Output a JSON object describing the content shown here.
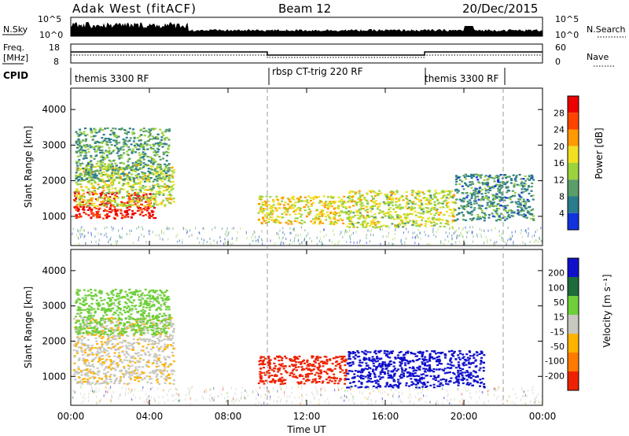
{
  "header": {
    "station": "Adak West (fitACF)",
    "beam": "Beam 12",
    "date": "20/Dec/2015"
  },
  "nsky_panel": {
    "left_label": "N.Sky",
    "right_label": "N.Search",
    "left_ticks": [
      "10^5",
      "10^0"
    ],
    "right_ticks": [
      "10^5",
      "10^0"
    ]
  },
  "freq_panel": {
    "left_label_line1": "Freq.",
    "left_label_line2": "[MHz]",
    "right_label": "Nave",
    "left_ticks": [
      "18",
      "8"
    ],
    "right_ticks": [
      "60",
      "0"
    ]
  },
  "cpid": {
    "label": "CPID",
    "segments": [
      {
        "label": "themis 3300 RF",
        "start_hour": 0,
        "end_hour": 10
      },
      {
        "label": "rbsp CT-trig 220 RF",
        "start_hour": 10,
        "end_hour": 18
      },
      {
        "label": "themis 3300 RF",
        "start_hour": 18,
        "end_hour": 22
      }
    ]
  },
  "power_panel": {
    "ylabel": "Slant Range [km]",
    "yticks": [
      "1000",
      "2000",
      "3000",
      "4000"
    ],
    "colorbar_label": "Power [dB]",
    "colorbar_ticks": [
      "4",
      "8",
      "12",
      "16",
      "20",
      "24",
      "28"
    ]
  },
  "velocity_panel": {
    "ylabel": "Slant Range [km]",
    "yticks": [
      "1000",
      "2000",
      "3000",
      "4000"
    ],
    "colorbar_label": "Velocity [m s⁻¹]",
    "colorbar_ticks": [
      "200",
      "100",
      "50",
      "15",
      "-15",
      "-50",
      "-100",
      "-200"
    ]
  },
  "xaxis": {
    "label": "Time UT",
    "ticks": [
      "00:00",
      "04:00",
      "08:00",
      "12:00",
      "16:00",
      "20:00",
      "00:00"
    ]
  },
  "chart_data": {
    "type": "heatmap",
    "title": "Adak West (fitACF)",
    "subtitle": "Beam 12 20/Dec/2015",
    "xlabel": "Time UT",
    "ylabel": "Slant Range [km]",
    "xlim_hours": [
      0,
      24
    ],
    "ylim_km": [
      180,
      4600
    ],
    "grid": false,
    "dashed_markers_hours": [
      10,
      22
    ],
    "colors": {
      "power": [
        "#1133dd",
        "#2a7b8c",
        "#5a9e6b",
        "#9ad33c",
        "#f0e020",
        "#ff9a00",
        "#ff4400",
        "#ee0000"
      ],
      "velocity": [
        "#1010cc",
        "#1e6b3c",
        "#6fcf3a",
        "#c8c8c0",
        "#ffb300",
        "#ff7a00",
        "#ee2200"
      ]
    },
    "series": [
      {
        "name": "Power [dB]",
        "region": [
          {
            "t_start": 0.1,
            "t_end": 4.3,
            "r_low": 950,
            "r_high": 1700,
            "value": 28
          },
          {
            "t_start": 0.2,
            "t_end": 5.2,
            "r_low": 1300,
            "r_high": 2500,
            "value": 14
          },
          {
            "t_start": 0.2,
            "t_end": 5.0,
            "r_low": 2000,
            "r_high": 3500,
            "value": 8
          },
          {
            "t_start": 9.5,
            "t_end": 14.0,
            "r_low": 800,
            "r_high": 1600,
            "value": 16
          },
          {
            "t_start": 14.0,
            "t_end": 19.5,
            "r_low": 700,
            "r_high": 1750,
            "value": 14
          },
          {
            "t_start": 19.5,
            "t_end": 23.5,
            "r_low": 900,
            "r_high": 2200,
            "value": 6
          }
        ]
      },
      {
        "name": "Velocity [m s⁻¹]",
        "region": [
          {
            "t_start": 0.1,
            "t_end": 5.2,
            "r_low": 800,
            "r_high": 2700,
            "value": 0
          },
          {
            "t_start": 0.2,
            "t_end": 5.0,
            "r_low": 2200,
            "r_high": 3500,
            "value": 50
          },
          {
            "t_start": 9.5,
            "t_end": 14.0,
            "r_low": 800,
            "r_high": 1600,
            "value": -200
          },
          {
            "t_start": 14.0,
            "t_end": 21.0,
            "r_low": 700,
            "r_high": 1750,
            "value": 200
          }
        ]
      }
    ]
  }
}
